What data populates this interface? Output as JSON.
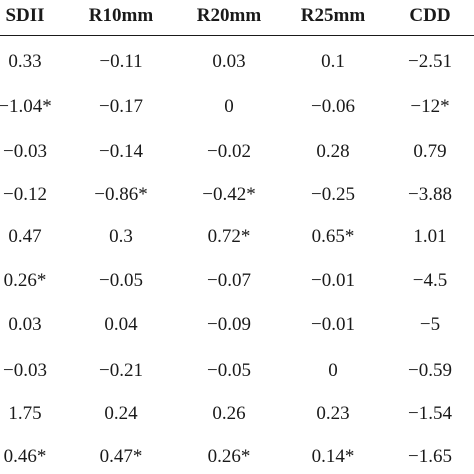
{
  "table": {
    "headers": [
      "SDII",
      "R10mm",
      "R20mm",
      "R25mm",
      "CDD"
    ],
    "rows": [
      [
        "0.33",
        "−0.11",
        "0.03",
        "0.1",
        "−2.51"
      ],
      [
        "−1.04*",
        "−0.17",
        "0",
        "−0.06",
        "−12*"
      ],
      [
        "−0.03",
        "−0.14",
        "−0.02",
        "0.28",
        "0.79"
      ],
      [
        "−0.12",
        "−0.86*",
        "−0.42*",
        "−0.25",
        "−3.88"
      ],
      [
        "0.47",
        "0.3",
        "0.72*",
        "0.65*",
        "1.01"
      ],
      [
        "0.26*",
        "−0.05",
        "−0.07",
        "−0.01",
        "−4.5"
      ],
      [
        "0.03",
        "0.04",
        "−0.09",
        "−0.01",
        "−5"
      ],
      [
        "−0.03",
        "−0.21",
        "−0.05",
        "0",
        "−0.59"
      ],
      [
        "1.75",
        "0.24",
        "0.26",
        "0.23",
        "−1.54"
      ],
      [
        "0.46*",
        "0.47*",
        "0.26*",
        "0.14*",
        "−1.65"
      ]
    ]
  }
}
